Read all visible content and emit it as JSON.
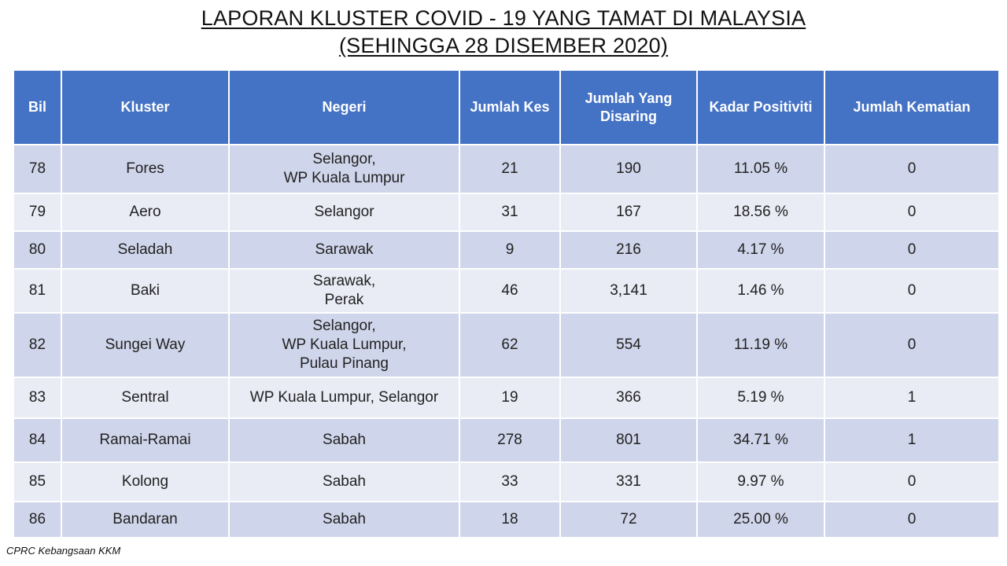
{
  "title": {
    "line1": "LAPORAN KLUSTER COVID - 19 YANG TAMAT DI MALAYSIA",
    "line2": "(SEHINGGA 28 DISEMBER 2020)"
  },
  "table": {
    "headers": [
      "Bil",
      "Kluster",
      "Negeri",
      "Jumlah Kes",
      "Jumlah Yang Disaring",
      "Kadar Positiviti",
      "Jumlah Kematian"
    ],
    "rows": [
      [
        "78",
        "Fores",
        "Selangor,\nWP Kuala Lumpur",
        "21",
        "190",
        "11.05 %",
        "0"
      ],
      [
        "79",
        "Aero",
        "Selangor",
        "31",
        "167",
        "18.56 %",
        "0"
      ],
      [
        "80",
        "Seladah",
        "Sarawak",
        "9",
        "216",
        "4.17 %",
        "0"
      ],
      [
        "81",
        "Baki",
        "Sarawak,\nPerak",
        "46",
        "3,141",
        "1.46 %",
        "0"
      ],
      [
        "82",
        "Sungei Way",
        "Selangor,\nWP Kuala Lumpur,\nPulau Pinang",
        "62",
        "554",
        "11.19 %",
        "0"
      ],
      [
        "83",
        "Sentral",
        "WP Kuala Lumpur, Selangor",
        "19",
        "366",
        "5.19 %",
        "1"
      ],
      [
        "84",
        "Ramai-Ramai",
        "Sabah",
        "278",
        "801",
        "34.71 %",
        "1"
      ],
      [
        "85",
        "Kolong",
        "Sabah",
        "33",
        "331",
        "9.97 %",
        "0"
      ],
      [
        "86",
        "Bandaran",
        "Sabah",
        "18",
        "72",
        "25.00 %",
        "0"
      ]
    ]
  },
  "footer": "CPRC Kebangsaan KKM",
  "colors": {
    "header_bg": "#4472c4",
    "row_dark": "#cfd5ea",
    "row_light": "#e9ebf5"
  }
}
